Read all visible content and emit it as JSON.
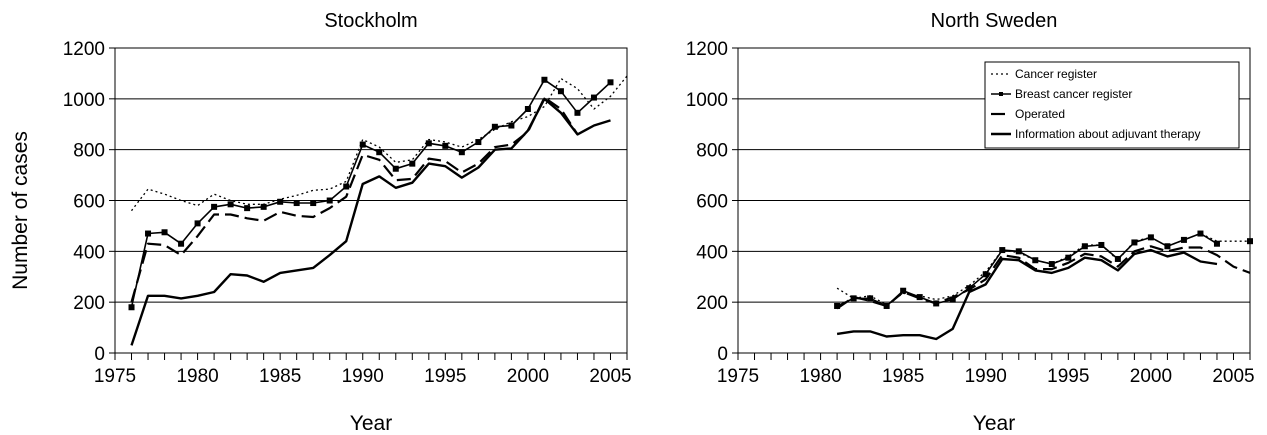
{
  "chart_data": [
    {
      "type": "line",
      "title": "Stockholm",
      "xlabel": "Year",
      "ylabel": "Number of cases",
      "xlim": [
        1975,
        2006
      ],
      "ylim": [
        0,
        1200
      ],
      "xticks": [
        "1975",
        "1980",
        "1985",
        "1990",
        "1995",
        "2000",
        "2005"
      ],
      "yticks": [
        "0",
        "200",
        "400",
        "600",
        "800",
        "1000",
        "1200"
      ],
      "grid": "horizontal",
      "legend": null,
      "x": [
        1976,
        1977,
        1978,
        1979,
        1980,
        1981,
        1982,
        1983,
        1984,
        1985,
        1986,
        1987,
        1988,
        1989,
        1990,
        1991,
        1992,
        1993,
        1994,
        1995,
        1996,
        1997,
        1998,
        1999,
        2000,
        2001,
        2002,
        2003,
        2004,
        2005,
        2006
      ],
      "series": [
        {
          "name": "Cancer register",
          "style": "dotted",
          "values": [
            560,
            645,
            625,
            600,
            580,
            625,
            600,
            585,
            585,
            605,
            620,
            640,
            645,
            675,
            840,
            810,
            750,
            760,
            840,
            830,
            810,
            840,
            880,
            910,
            930,
            970,
            1080,
            1040,
            960,
            1010,
            1090
          ]
        },
        {
          "name": "Breast cancer register",
          "style": "solid-marker",
          "values": [
            180,
            470,
            475,
            430,
            510,
            575,
            585,
            570,
            575,
            595,
            590,
            590,
            600,
            655,
            820,
            790,
            725,
            745,
            825,
            815,
            790,
            830,
            890,
            895,
            960,
            1075,
            1030,
            945,
            1005,
            1065,
            null
          ]
        },
        {
          "name": "Operated",
          "style": "dashed",
          "values": [
            200,
            430,
            425,
            385,
            460,
            545,
            545,
            530,
            520,
            555,
            540,
            535,
            570,
            615,
            780,
            760,
            680,
            685,
            765,
            755,
            710,
            745,
            810,
            820,
            870,
            1005,
            960,
            860,
            null,
            null,
            null
          ]
        },
        {
          "name": "Information about adjuvant therapy",
          "style": "solid-thick",
          "values": [
            30,
            225,
            225,
            215,
            225,
            240,
            310,
            305,
            280,
            315,
            325,
            335,
            385,
            440,
            665,
            695,
            650,
            670,
            745,
            735,
            690,
            730,
            800,
            805,
            875,
            1000,
            945,
            860,
            895,
            915,
            null
          ]
        }
      ]
    },
    {
      "type": "line",
      "title": "North Sweden",
      "xlabel": "Year",
      "ylabel": "",
      "xlim": [
        1975,
        2006
      ],
      "ylim": [
        0,
        1200
      ],
      "xticks": [
        "1975",
        "1980",
        "1985",
        "1990",
        "1995",
        "2000",
        "2005"
      ],
      "yticks": [
        "0",
        "200",
        "400",
        "600",
        "800",
        "1000",
        "1200"
      ],
      "grid": "horizontal",
      "legend": "top-right",
      "x": [
        1981,
        1982,
        1983,
        1984,
        1985,
        1986,
        1987,
        1988,
        1989,
        1990,
        1991,
        1992,
        1993,
        1994,
        1995,
        1996,
        1997,
        1998,
        1999,
        2000,
        2001,
        2002,
        2003,
        2004,
        2005,
        2006
      ],
      "series": [
        {
          "name": "Cancer register",
          "style": "dotted",
          "values": [
            255,
            215,
            225,
            190,
            235,
            225,
            210,
            225,
            265,
            320,
            405,
            395,
            365,
            350,
            380,
            425,
            425,
            365,
            440,
            455,
            420,
            445,
            470,
            440,
            440,
            440
          ]
        },
        {
          "name": "Breast cancer register",
          "style": "solid-marker",
          "values": [
            185,
            215,
            215,
            185,
            245,
            220,
            195,
            210,
            255,
            310,
            405,
            400,
            365,
            350,
            375,
            420,
            425,
            370,
            435,
            455,
            420,
            445,
            470,
            430,
            null,
            440
          ]
        },
        {
          "name": "Operated",
          "style": "dashed",
          "values": [
            175,
            220,
            205,
            185,
            240,
            215,
            195,
            220,
            250,
            290,
            385,
            375,
            330,
            330,
            355,
            390,
            380,
            340,
            400,
            420,
            400,
            415,
            415,
            385,
            340,
            315
          ]
        },
        {
          "name": "Information about adjuvant therapy",
          "style": "solid-thick",
          "values": [
            75,
            85,
            85,
            65,
            70,
            70,
            55,
            95,
            240,
            270,
            370,
            365,
            325,
            315,
            335,
            375,
            365,
            325,
            390,
            405,
            380,
            395,
            360,
            350,
            null,
            null
          ]
        }
      ]
    }
  ]
}
